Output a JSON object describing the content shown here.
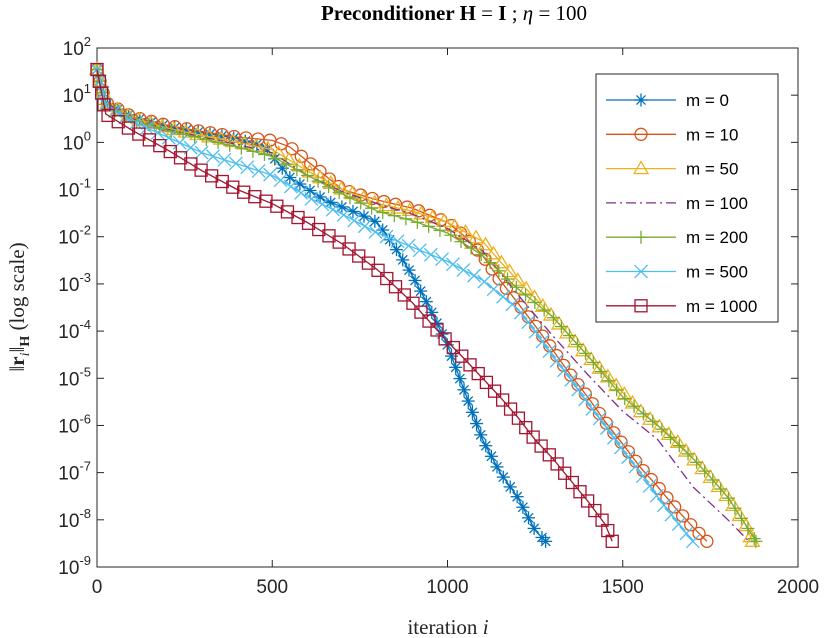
{
  "chart_data": {
    "type": "line",
    "title": "Preconditioner H = I ; η = 100",
    "title_parts": {
      "before": "Preconditioner ",
      "bold1": "H",
      "eq1": " = ",
      "bold2": "I",
      "sep": " ; ",
      "sym": "η",
      "eq2": " = 100"
    },
    "xlabel": "iteration i",
    "xlabel_parts": {
      "text": "iteration ",
      "var": "i"
    },
    "ylabel": "||r_i||_H (log scale)",
    "ylabel_parts": {
      "open": "‖",
      "r": "r",
      "sub_i": "i",
      "close": "‖",
      "sub_H": "H",
      "suffix": " (log scale)"
    },
    "xlim": [
      0,
      2000
    ],
    "ylim": [
      1e-09,
      100
    ],
    "yscale": "log",
    "xticks": [
      0,
      500,
      1000,
      1500,
      2000
    ],
    "yticks": [
      {
        "base": "10",
        "exp": "-9",
        "value": 1e-09
      },
      {
        "base": "10",
        "exp": "-8",
        "value": 1e-08
      },
      {
        "base": "10",
        "exp": "-7",
        "value": 1e-07
      },
      {
        "base": "10",
        "exp": "-6",
        "value": 1e-06
      },
      {
        "base": "10",
        "exp": "-5",
        "value": 1e-05
      },
      {
        "base": "10",
        "exp": "-4",
        "value": 0.0001
      },
      {
        "base": "10",
        "exp": "-3",
        "value": 0.001
      },
      {
        "base": "10",
        "exp": "-2",
        "value": 0.01
      },
      {
        "base": "10",
        "exp": "-1",
        "value": 0.1
      },
      {
        "base": "10",
        "exp": "0",
        "value": 1
      },
      {
        "base": "10",
        "exp": "1",
        "value": 10
      },
      {
        "base": "10",
        "exp": "2",
        "value": 100
      }
    ],
    "grid": false,
    "legend_position": "top-right",
    "series": [
      {
        "name": "m = 0",
        "color": "#0072BD",
        "marker": "asterisk",
        "dash": "solid",
        "x": [
          0,
          25,
          100,
          200,
          300,
          400,
          480,
          550,
          650,
          750,
          800,
          850,
          900,
          950,
          1000,
          1050,
          1100,
          1150,
          1200,
          1250,
          1280
        ],
        "y": [
          35,
          7,
          3.5,
          2.2,
          1.6,
          1.2,
          0.8,
          0.18,
          0.06,
          0.03,
          0.02,
          0.006,
          0.0015,
          0.0003,
          5e-05,
          5e-06,
          5e-07,
          1e-07,
          3e-08,
          6e-09,
          3.5e-09
        ]
      },
      {
        "name": "m = 10",
        "color": "#D95319",
        "marker": "circle",
        "dash": "solid",
        "x": [
          0,
          25,
          100,
          200,
          300,
          400,
          500,
          550,
          600,
          650,
          700,
          800,
          900,
          1000,
          1050,
          1100,
          1150,
          1200,
          1250,
          1300,
          1350,
          1400,
          1450,
          1500,
          1550,
          1600,
          1650,
          1700,
          1740
        ],
        "y": [
          35,
          7,
          3.5,
          2.3,
          1.7,
          1.3,
          1.1,
          0.8,
          0.4,
          0.2,
          0.1,
          0.06,
          0.04,
          0.02,
          0.01,
          0.004,
          0.0012,
          0.0004,
          0.00013,
          4e-05,
          1.2e-05,
          4e-06,
          1.2e-06,
          4e-07,
          1.3e-07,
          5e-08,
          1.8e-08,
          7e-09,
          3.5e-09
        ]
      },
      {
        "name": "m = 50",
        "color": "#EDB120",
        "marker": "triangle",
        "dash": "solid",
        "x": [
          0,
          25,
          100,
          200,
          300,
          400,
          500,
          600,
          700,
          800,
          900,
          1000,
          1100,
          1150,
          1200,
          1250,
          1300,
          1400,
          1500,
          1550,
          1600,
          1650,
          1700,
          1750,
          1800,
          1850,
          1870
        ],
        "y": [
          35,
          7,
          3.3,
          2.0,
          1.4,
          1.0,
          0.7,
          0.25,
          0.1,
          0.05,
          0.035,
          0.02,
          0.008,
          0.003,
          0.0012,
          0.0005,
          0.0002,
          3e-05,
          5e-06,
          2e-06,
          1e-06,
          5e-07,
          2e-07,
          8e-08,
          3e-08,
          8e-09,
          3.5e-09
        ]
      },
      {
        "name": "m = 100",
        "color": "#7E2F8E",
        "marker": "none",
        "dash": "dashdot",
        "x": [
          0,
          25,
          100,
          200,
          300,
          400,
          500,
          600,
          700,
          800,
          900,
          1000,
          1100,
          1200,
          1300,
          1400,
          1500,
          1600,
          1700,
          1800,
          1860
        ],
        "y": [
          35,
          7,
          3.2,
          1.9,
          1.3,
          0.9,
          0.6,
          0.2,
          0.09,
          0.05,
          0.03,
          0.015,
          0.005,
          0.0006,
          8e-05,
          1.2e-05,
          2e-06,
          5e-07,
          5e-08,
          1e-08,
          3.5e-09
        ]
      },
      {
        "name": "m = 200",
        "color": "#77AC30",
        "marker": "plus",
        "dash": "solid",
        "x": [
          0,
          25,
          100,
          200,
          300,
          400,
          500,
          600,
          700,
          800,
          900,
          1000,
          1100,
          1200,
          1300,
          1400,
          1500,
          1550,
          1600,
          1700,
          1750,
          1800,
          1850,
          1880
        ],
        "y": [
          35,
          6,
          3.0,
          1.8,
          1.2,
          0.8,
          0.5,
          0.2,
          0.08,
          0.035,
          0.022,
          0.012,
          0.004,
          0.0008,
          0.0002,
          3e-05,
          4e-06,
          2e-06,
          1e-06,
          2e-07,
          8e-08,
          3e-08,
          8e-09,
          3.5e-09
        ]
      },
      {
        "name": "m = 500",
        "color": "#4DBEEE",
        "marker": "cross",
        "dash": "solid",
        "x": [
          0,
          25,
          100,
          200,
          300,
          400,
          500,
          550,
          600,
          700,
          800,
          900,
          1000,
          1100,
          1200,
          1250,
          1300,
          1350,
          1400,
          1450,
          1500,
          1550,
          1600,
          1650,
          1700
        ],
        "y": [
          35,
          6,
          2.8,
          1.3,
          0.6,
          0.35,
          0.2,
          0.12,
          0.07,
          0.03,
          0.012,
          0.006,
          0.003,
          0.0012,
          0.0003,
          0.0001,
          3e-05,
          1e-05,
          3e-06,
          1e-06,
          3e-07,
          1e-07,
          3e-08,
          1e-08,
          3.5e-09
        ]
      },
      {
        "name": "m = 1000",
        "color": "#A2142F",
        "marker": "square",
        "dash": "solid",
        "x": [
          0,
          25,
          100,
          200,
          300,
          400,
          500,
          600,
          700,
          800,
          900,
          1000,
          1050,
          1100,
          1150,
          1200,
          1250,
          1300,
          1350,
          1400,
          1450,
          1470
        ],
        "y": [
          35,
          4,
          1.8,
          0.7,
          0.25,
          0.1,
          0.05,
          0.02,
          0.007,
          0.002,
          0.0004,
          6e-05,
          2.5e-05,
          1e-05,
          4e-06,
          1.5e-06,
          5e-07,
          2e-07,
          7e-08,
          2.5e-08,
          8e-09,
          3.5e-09
        ]
      }
    ]
  }
}
